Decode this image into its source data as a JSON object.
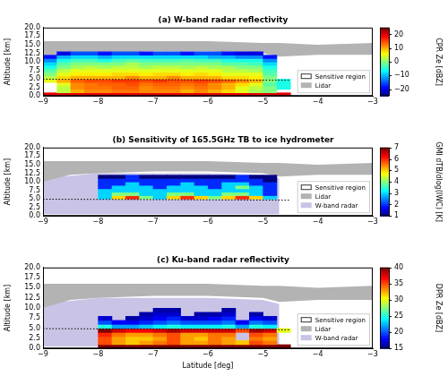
{
  "chart_data": [
    {
      "type": "heatmap",
      "title": "(a) W-band radar reflectivity",
      "ylabel": "Altitude [km]",
      "xlim": [
        -9,
        -3
      ],
      "xticks": [
        {
          "value": -9,
          "label": "−9"
        },
        {
          "value": -8,
          "label": "−8"
        },
        {
          "value": -7,
          "label": "−7"
        },
        {
          "value": -6,
          "label": "−6"
        },
        {
          "value": -5,
          "label": "−5"
        },
        {
          "value": -4,
          "label": "−4"
        },
        {
          "value": -3,
          "label": "−3"
        }
      ],
      "ylim": [
        0,
        20
      ],
      "yticks": [
        {
          "value": 0,
          "label": "0.0"
        },
        {
          "value": 2.5,
          "label": "2.5"
        },
        {
          "value": 5,
          "label": "5.0"
        },
        {
          "value": 7.5,
          "label": "7.5"
        },
        {
          "value": 10,
          "label": "10.0"
        },
        {
          "value": 12.5,
          "label": "12.5"
        },
        {
          "value": 15,
          "label": "15.0"
        },
        {
          "value": 17.5,
          "label": "17.5"
        },
        {
          "value": 20,
          "label": "20.0"
        }
      ],
      "grid": false,
      "legend": "lower right",
      "cells": {
        "name": "Sensitive region",
        "color": "#ffffff",
        "x0": -9,
        "dx": 0.25,
        "y0": 0,
        "dy": 1,
        "rows": [
          [
            20,
            20,
            20,
            20,
            20,
            20,
            20,
            20,
            20,
            20,
            20,
            20,
            20,
            20,
            20,
            20,
            20,
            20
          ],
          [
            null,
            3,
            10,
            12,
            12,
            13,
            13,
            12,
            12,
            12,
            10,
            12,
            10,
            8,
            5,
            2,
            0,
            null
          ],
          [
            null,
            3,
            12,
            13,
            13,
            14,
            14,
            12,
            13,
            13,
            12,
            13,
            12,
            10,
            5,
            3,
            0,
            -5
          ],
          [
            null,
            5,
            12,
            13,
            14,
            14,
            15,
            13,
            14,
            14,
            13,
            14,
            12,
            10,
            8,
            5,
            -2,
            -5
          ],
          [
            5,
            10,
            14,
            15,
            15,
            16,
            16,
            15,
            16,
            15,
            15,
            16,
            15,
            14,
            12,
            10,
            0,
            -5
          ],
          [
            3,
            8,
            10,
            10,
            10,
            10,
            12,
            10,
            10,
            12,
            10,
            10,
            10,
            8,
            8,
            7,
            0,
            null
          ],
          [
            0,
            5,
            7,
            7,
            7,
            8,
            8,
            7,
            8,
            8,
            7,
            8,
            7,
            5,
            5,
            5,
            -2,
            null
          ],
          [
            -2,
            3,
            5,
            5,
            5,
            5,
            5,
            5,
            5,
            5,
            5,
            5,
            5,
            3,
            3,
            2,
            -3,
            null
          ],
          [
            -5,
            0,
            2,
            3,
            2,
            3,
            3,
            2,
            3,
            3,
            2,
            3,
            2,
            2,
            0,
            0,
            -5,
            null
          ],
          [
            -8,
            -2,
            0,
            0,
            0,
            0,
            2,
            0,
            0,
            0,
            0,
            0,
            0,
            -2,
            -2,
            -3,
            -8,
            null
          ],
          [
            -12,
            -5,
            -3,
            -3,
            -5,
            -3,
            -2,
            -3,
            -3,
            -3,
            -2,
            -3,
            -3,
            -5,
            -5,
            -5,
            -12,
            null
          ],
          [
            -18,
            -10,
            -8,
            -8,
            -10,
            -8,
            -8,
            -8,
            -8,
            -8,
            -8,
            -8,
            -10,
            -10,
            -12,
            -12,
            -18,
            null
          ],
          [
            null,
            -20,
            -15,
            -15,
            -18,
            -15,
            -15,
            -18,
            -15,
            -15,
            -18,
            -15,
            -15,
            -18,
            -20,
            -20,
            null,
            null
          ]
        ]
      },
      "colorbar": {
        "label": "CPR Ze [dBZ]",
        "range": [
          -25,
          25
        ],
        "ticks": [
          {
            "value": -20,
            "label": "−20"
          },
          {
            "value": -10,
            "label": "−10"
          },
          0,
          10,
          20
        ]
      },
      "series": [
        {
          "name": "Lidar",
          "color": "#b3b3b3",
          "x": [
            -9,
            -8.5,
            -8,
            -7,
            -6,
            -5,
            -4.7,
            -4,
            -3
          ],
          "top": [
            16,
            16,
            16,
            16,
            16,
            15.5,
            15.5,
            15,
            15.5
          ],
          "bottom": [
            10,
            12,
            12.5,
            13,
            13,
            12.5,
            11.5,
            12,
            12
          ]
        }
      ],
      "reference_line": {
        "x": [
          -9,
          -4.5
        ],
        "y": [
          4.9,
          4.6
        ],
        "line_style": "dotted",
        "color": "#000000"
      }
    },
    {
      "type": "heatmap",
      "title": "(b) Sensitivity of 165.5GHz TB to ice hydrometer",
      "ylabel": "Altitude [km]",
      "xlim": [
        -9,
        -3
      ],
      "xticks": [
        {
          "value": -9,
          "label": "−9"
        },
        {
          "value": -8,
          "label": "−8"
        },
        {
          "value": -7,
          "label": "−7"
        },
        {
          "value": -6,
          "label": "−6"
        },
        {
          "value": -5,
          "label": "−5"
        },
        {
          "value": -4,
          "label": "−4"
        },
        {
          "value": -3,
          "label": "−3"
        }
      ],
      "ylim": [
        0,
        20
      ],
      "yticks": [
        {
          "value": 0,
          "label": "0.0"
        },
        {
          "value": 2.5,
          "label": "2.5"
        },
        {
          "value": 5,
          "label": "5.0"
        },
        {
          "value": 7.5,
          "label": "7.5"
        },
        {
          "value": 10,
          "label": "10.0"
        },
        {
          "value": 12.5,
          "label": "12.5"
        },
        {
          "value": 15,
          "label": "15.0"
        },
        {
          "value": 17.5,
          "label": "17.5"
        },
        {
          "value": 20,
          "label": "20.0"
        }
      ],
      "grid": false,
      "legend": "lower right",
      "cells": {
        "name": "Sensitive region",
        "color": "#ffffff",
        "x0": -8,
        "dx": 0.25,
        "y0": 5,
        "dy": 1,
        "rows": [
          [
            3,
            5,
            6,
            4,
            3,
            5,
            6,
            5,
            4,
            5,
            6,
            5,
            3,
            null
          ],
          [
            3,
            4,
            4,
            3,
            3,
            4,
            4,
            3,
            3,
            4,
            4,
            3,
            2,
            null
          ],
          [
            3,
            3,
            3,
            3,
            3,
            3,
            3,
            3,
            3,
            3,
            3,
            3,
            2,
            null
          ],
          [
            2,
            3,
            3,
            3,
            2,
            3,
            3,
            3,
            2,
            3,
            4,
            3,
            2,
            null
          ],
          [
            2,
            2,
            3,
            2,
            2,
            2,
            3,
            2,
            2,
            3,
            3,
            2,
            2,
            null
          ],
          [
            2,
            2,
            2,
            2,
            2,
            2,
            2,
            2,
            2,
            2,
            2,
            2,
            1,
            null
          ],
          [
            1,
            1,
            2,
            1,
            1,
            1,
            1,
            1,
            1,
            1,
            2,
            1,
            1,
            null
          ]
        ]
      },
      "colorbar": {
        "label": "GMI dTB/dlog(IWC) [K]",
        "range": [
          1,
          7
        ],
        "ticks": [
          1,
          2,
          3,
          4,
          5,
          6,
          7
        ]
      },
      "series": [
        {
          "name": "Lidar",
          "color": "#b3b3b3",
          "x": [
            -9,
            -8.5,
            -8,
            -7,
            -6,
            -5,
            -4.7,
            -4,
            -3
          ],
          "top": [
            16,
            16,
            16,
            16,
            16,
            15.5,
            15.5,
            15,
            15.5
          ],
          "bottom": [
            10,
            12,
            12.5,
            13,
            13,
            12.5,
            11.5,
            12,
            12
          ]
        },
        {
          "name": "W-band radar",
          "color": "#c9c3e6",
          "x": [
            -9,
            -8,
            -7,
            -6,
            -5,
            -4.7
          ],
          "top": [
            11,
            12.5,
            12.5,
            12.5,
            12,
            11
          ],
          "bottom": [
            0.5,
            0.5,
            0.5,
            0.5,
            0.5,
            0.5
          ]
        }
      ],
      "reference_line": {
        "x": [
          -9,
          -4.5
        ],
        "y": [
          4.9,
          4.6
        ],
        "line_style": "dotted",
        "color": "#000000"
      }
    },
    {
      "type": "heatmap",
      "title": "(c) Ku-band radar reflectivity",
      "xlabel": "Latitude [deg]",
      "ylabel": "Altitude [km]",
      "xlim": [
        -9,
        -3
      ],
      "xticks": [
        {
          "value": -9,
          "label": "−9"
        },
        {
          "value": -8,
          "label": "−8"
        },
        {
          "value": -7,
          "label": "−7"
        },
        {
          "value": -6,
          "label": "−6"
        },
        {
          "value": -5,
          "label": "−5"
        },
        {
          "value": -4,
          "label": "−4"
        },
        {
          "value": -3,
          "label": "−3"
        }
      ],
      "ylim": [
        0,
        20
      ],
      "yticks": [
        {
          "value": 0,
          "label": "0.0"
        },
        {
          "value": 2.5,
          "label": "2.5"
        },
        {
          "value": 5,
          "label": "5.0"
        },
        {
          "value": 7.5,
          "label": "7.5"
        },
        {
          "value": 10,
          "label": "10.0"
        },
        {
          "value": 12.5,
          "label": "12.5"
        },
        {
          "value": 15,
          "label": "15.0"
        },
        {
          "value": 17.5,
          "label": "17.5"
        },
        {
          "value": 20,
          "label": "20.0"
        }
      ],
      "grid": false,
      "legend": "lower right",
      "cells": {
        "name": "Sensitive region",
        "color": "#ffffff",
        "x0": -8,
        "dx": 0.25,
        "y0": 0,
        "dy": 1,
        "rows": [
          [
            40,
            40,
            40,
            40,
            40,
            40,
            40,
            40,
            40,
            40,
            40,
            40,
            40,
            40
          ],
          [
            35,
            33,
            32,
            33,
            34,
            35,
            33,
            33,
            34,
            33,
            32,
            35,
            34,
            null
          ],
          [
            35,
            33,
            32,
            32,
            33,
            35,
            33,
            32,
            34,
            33,
            null,
            34,
            33,
            null
          ],
          [
            36,
            34,
            33,
            33,
            34,
            35,
            33,
            33,
            34,
            34,
            null,
            35,
            34,
            null
          ],
          [
            40,
            38,
            37,
            37,
            38,
            39,
            38,
            38,
            38,
            38,
            35,
            39,
            38,
            30
          ],
          [
            25,
            22,
            22,
            23,
            24,
            25,
            24,
            24,
            24,
            25,
            22,
            25,
            24,
            null
          ],
          [
            20,
            18,
            18,
            19,
            20,
            21,
            20,
            20,
            20,
            21,
            18,
            21,
            20,
            null
          ],
          [
            17,
            null,
            16,
            17,
            18,
            19,
            17,
            17,
            18,
            19,
            null,
            18,
            17,
            null
          ],
          [
            null,
            null,
            null,
            16,
            17,
            17,
            null,
            16,
            16,
            17,
            null,
            16,
            null,
            null
          ],
          [
            null,
            null,
            null,
            null,
            16,
            16,
            null,
            null,
            null,
            16,
            null,
            null,
            null,
            null
          ]
        ]
      },
      "colorbar": {
        "label": "DPR Ze [dBZ]",
        "range": [
          15,
          40
        ],
        "ticks": [
          15,
          20,
          25,
          30,
          35,
          40
        ]
      },
      "series": [
        {
          "name": "Lidar",
          "color": "#b3b3b3",
          "x": [
            -9,
            -8.5,
            -8,
            -7,
            -6,
            -5,
            -4.7,
            -4,
            -3
          ],
          "top": [
            16,
            16,
            16,
            16,
            16,
            15.5,
            15.5,
            15,
            15.5
          ],
          "bottom": [
            10,
            12,
            12.5,
            13,
            13,
            12.5,
            11.5,
            12,
            12
          ]
        },
        {
          "name": "W-band radar",
          "color": "#c9c3e6",
          "x": [
            -9,
            -8,
            -7,
            -6,
            -5,
            -4.7
          ],
          "top": [
            11,
            12.5,
            12.5,
            12.5,
            12,
            11
          ],
          "bottom": [
            0.5,
            0.5,
            0.5,
            0.5,
            0.5,
            0.5
          ]
        }
      ],
      "reference_line": {
        "x": [
          -9,
          -4.5
        ],
        "y": [
          4.9,
          4.6
        ],
        "line_style": "dotted",
        "color": "#000000"
      }
    }
  ]
}
